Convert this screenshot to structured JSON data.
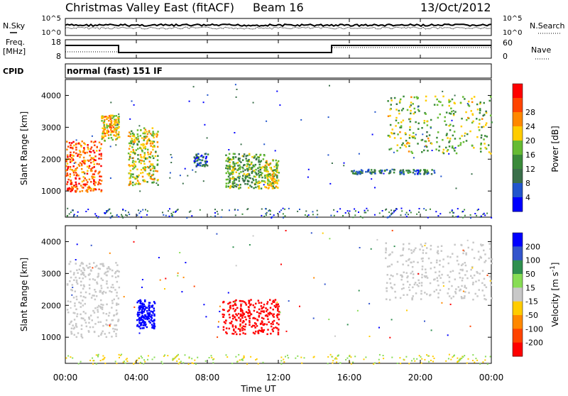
{
  "header": {
    "title": "Christmas Valley East (fitACF)",
    "beam": "Beam 16",
    "date": "13/Oct/2012"
  },
  "top_panel": {
    "left_label": "N.Sky",
    "left_ticks": [
      "10^5",
      "10^0"
    ],
    "right_ticks": [
      "10^5",
      "10^0"
    ],
    "right_label": "N.Search"
  },
  "freq_panel": {
    "left_label_1": "Freq.",
    "left_label_2": "[MHz]",
    "left_ticks": [
      "18",
      "8"
    ],
    "right_ticks": [
      "60",
      "0"
    ],
    "right_label": "Nave"
  },
  "cpid": {
    "label": "CPID",
    "value": "normal (fast) 151 IF"
  },
  "x_axis": {
    "label": "Time UT",
    "ticks": [
      "00:00",
      "04:00",
      "08:00",
      "12:00",
      "16:00",
      "20:00",
      "00:00"
    ]
  },
  "colors": {
    "power_scale": [
      "#0000ff",
      "#2255cc",
      "#3a6f4a",
      "#3a8a3a",
      "#66bb33",
      "#ffcc00",
      "#ff8800",
      "#ff4400",
      "#ff0000"
    ],
    "velocity_scale": [
      "#0000ff",
      "#3355cc",
      "#2f8f4f",
      "#88dd55",
      "#c8c8c8",
      "#ffcc00",
      "#ff8800",
      "#ff4400",
      "#ff0000"
    ]
  },
  "chart_data": [
    {
      "type": "heatmap",
      "title": "Power",
      "xlabel": "Time UT",
      "ylabel": "Slant Range [km]",
      "y_ticks": [
        "1000",
        "2000",
        "3000",
        "4000"
      ],
      "ylim": [
        180,
        4500
      ],
      "colorbar": {
        "label": "Power [dB]",
        "ticks": [
          "4",
          "8",
          "12",
          "16",
          "20",
          "24",
          "28"
        ]
      },
      "regions": [
        {
          "t_start": 0.0,
          "t_end": 2.0,
          "range_start": 1000,
          "range_end": 2600,
          "value": 24
        },
        {
          "t_start": 2.0,
          "t_end": 3.0,
          "range_start": 2600,
          "range_end": 3400,
          "value": 20
        },
        {
          "t_start": 3.5,
          "t_end": 5.2,
          "range_start": 1200,
          "range_end": 3000,
          "value": 18
        },
        {
          "t_start": 7.2,
          "t_end": 8.0,
          "range_start": 1800,
          "range_end": 2200,
          "value": 8
        },
        {
          "t_start": 9.0,
          "t_end": 11.2,
          "range_start": 1100,
          "range_end": 2200,
          "value": 14
        },
        {
          "t_start": 11.2,
          "t_end": 12.0,
          "range_start": 1100,
          "range_end": 2000,
          "value": 18
        },
        {
          "t_start": 16.0,
          "t_end": 20.8,
          "range_start": 1550,
          "range_end": 1700,
          "value": 10
        },
        {
          "t_start": 18.0,
          "t_end": 24.0,
          "range_start": 2200,
          "range_end": 4000,
          "value": 16
        }
      ]
    },
    {
      "type": "heatmap",
      "title": "Velocity",
      "xlabel": "Time UT",
      "ylabel": "Slant Range [km]",
      "y_ticks": [
        "1000",
        "2000",
        "3000",
        "4000"
      ],
      "ylim": [
        180,
        4500
      ],
      "colorbar": {
        "label": "Velocity [m s^-1]",
        "label_main": "Velocity [m s",
        "label_exp": "-1",
        "label_end": "]",
        "ticks": [
          "200",
          "100",
          "50",
          "15",
          "-15",
          "-50",
          "-100",
          "-200"
        ]
      },
      "regions": [
        {
          "t_start": 0.0,
          "t_end": 3.0,
          "range_start": 1000,
          "range_end": 3400,
          "value": 0
        },
        {
          "t_start": 4.0,
          "t_end": 5.0,
          "range_start": 1300,
          "range_end": 2200,
          "value": 220
        },
        {
          "t_start": 8.8,
          "t_end": 12.0,
          "range_start": 1100,
          "range_end": 2200,
          "value": -220
        },
        {
          "t_start": 18.0,
          "t_end": 24.0,
          "range_start": 2200,
          "range_end": 4000,
          "value": 0
        }
      ]
    }
  ]
}
